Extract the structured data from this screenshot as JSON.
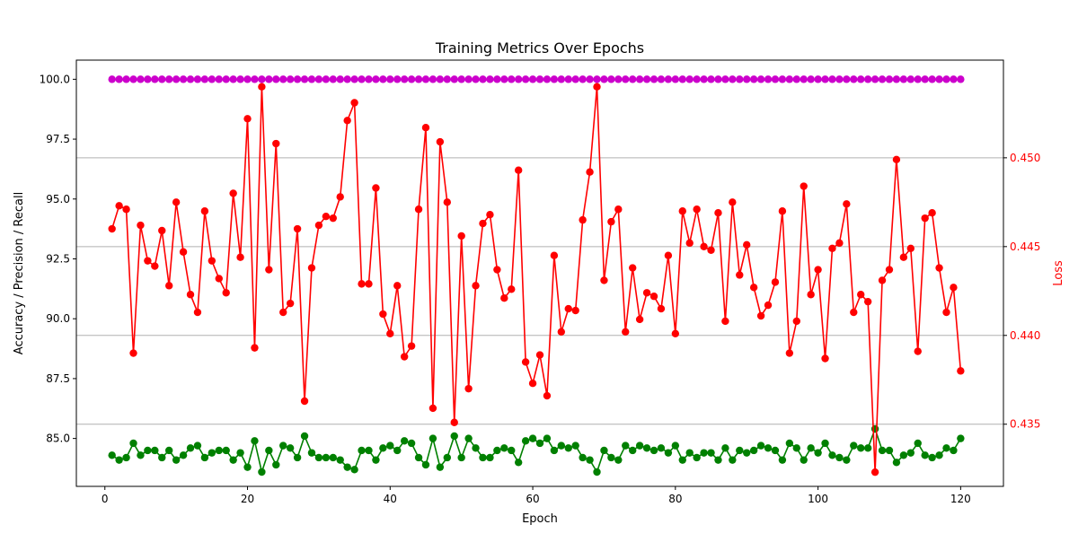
{
  "chart_data": {
    "type": "line",
    "title": "Training Metrics Over Epochs",
    "xlabel": "Epoch",
    "ylabel": "Accuracy / Precision / Recall",
    "y2label": "Loss",
    "xlim": [
      -4,
      126
    ],
    "ylim": [
      83.0,
      100.8
    ],
    "y2lim": [
      0.4315,
      0.4555
    ],
    "xticks": [
      "0",
      "20",
      "40",
      "60",
      "80",
      "100",
      "120"
    ],
    "yticks": [
      "85.0",
      "87.5",
      "90.0",
      "92.5",
      "95.0",
      "97.5",
      "100.0"
    ],
    "y2ticks": [
      "0.435",
      "0.440",
      "0.445",
      "0.450"
    ],
    "grid": "right-axis horizontal",
    "legend": "none",
    "colors": {
      "magenta": "#cc00cc",
      "red": "#ff0000",
      "green": "#008000",
      "loss_axis": "#ff0000"
    },
    "x": [
      1,
      2,
      3,
      4,
      5,
      6,
      7,
      8,
      9,
      10,
      11,
      12,
      13,
      14,
      15,
      16,
      17,
      18,
      19,
      20,
      21,
      22,
      23,
      24,
      25,
      26,
      27,
      28,
      29,
      30,
      31,
      32,
      33,
      34,
      35,
      36,
      37,
      38,
      39,
      40,
      41,
      42,
      43,
      44,
      45,
      46,
      47,
      48,
      49,
      50,
      51,
      52,
      53,
      54,
      55,
      56,
      57,
      58,
      59,
      60,
      61,
      62,
      63,
      64,
      65,
      66,
      67,
      68,
      69,
      70,
      71,
      72,
      73,
      74,
      75,
      76,
      77,
      78,
      79,
      80,
      81,
      82,
      83,
      84,
      85,
      86,
      87,
      88,
      89,
      90,
      91,
      92,
      93,
      94,
      95,
      96,
      97,
      98,
      99,
      100,
      101,
      102,
      103,
      104,
      105,
      106,
      107,
      108,
      109,
      110,
      111,
      112,
      113,
      114,
      115,
      116,
      117,
      118,
      119,
      120
    ],
    "series": [
      {
        "axis": "left",
        "color": "#cc00cc",
        "values": [
          100,
          100,
          100,
          100,
          100,
          100,
          100,
          100,
          100,
          100,
          100,
          100,
          100,
          100,
          100,
          100,
          100,
          100,
          100,
          100,
          100,
          100,
          100,
          100,
          100,
          100,
          100,
          100,
          100,
          100,
          100,
          100,
          100,
          100,
          100,
          100,
          100,
          100,
          100,
          100,
          100,
          100,
          100,
          100,
          100,
          100,
          100,
          100,
          100,
          100,
          100,
          100,
          100,
          100,
          100,
          100,
          100,
          100,
          100,
          100,
          100,
          100,
          100,
          100,
          100,
          100,
          100,
          100,
          100,
          100,
          100,
          100,
          100,
          100,
          100,
          100,
          100,
          100,
          100,
          100,
          100,
          100,
          100,
          100,
          100,
          100,
          100,
          100,
          100,
          100,
          100,
          100,
          100,
          100,
          100,
          100,
          100,
          100,
          100,
          100,
          100,
          100,
          100,
          100,
          100,
          100,
          100,
          100,
          100,
          100,
          100,
          100,
          100,
          100,
          100,
          100,
          100,
          100,
          100,
          100
        ]
      },
      {
        "axis": "left",
        "color": "#008000",
        "values": [
          84.3,
          84.1,
          84.2,
          84.8,
          84.3,
          84.5,
          84.5,
          84.2,
          84.5,
          84.1,
          84.3,
          84.6,
          84.7,
          84.2,
          84.4,
          84.5,
          84.5,
          84.1,
          84.4,
          83.8,
          84.9,
          83.6,
          84.5,
          83.9,
          84.7,
          84.6,
          84.2,
          85.1,
          84.4,
          84.2,
          84.2,
          84.2,
          84.1,
          83.8,
          83.7,
          84.5,
          84.5,
          84.1,
          84.6,
          84.7,
          84.5,
          84.9,
          84.8,
          84.2,
          83.9,
          85.0,
          83.8,
          84.2,
          85.1,
          84.2,
          85.0,
          84.6,
          84.2,
          84.2,
          84.5,
          84.6,
          84.5,
          84.0,
          84.9,
          85.0,
          84.8,
          85.0,
          84.5,
          84.7,
          84.6,
          84.7,
          84.2,
          84.1,
          83.6,
          84.5,
          84.2,
          84.1,
          84.7,
          84.5,
          84.7,
          84.6,
          84.5,
          84.6,
          84.4,
          84.7,
          84.1,
          84.4,
          84.2,
          84.4,
          84.4,
          84.1,
          84.6,
          84.1,
          84.5,
          84.4,
          84.5,
          84.7,
          84.6,
          84.5,
          84.1,
          84.8,
          84.6,
          84.1,
          84.6,
          84.4,
          84.8,
          84.3,
          84.2,
          84.1,
          84.7,
          84.6,
          84.6,
          85.4,
          84.5,
          84.5,
          84.0,
          84.3,
          84.4,
          84.8,
          84.3,
          84.2,
          84.3,
          84.6,
          84.5,
          85.0
        ]
      },
      {
        "axis": "right",
        "color": "#ff0000",
        "values": [
          0.446,
          0.4473,
          0.4471,
          0.439,
          0.4462,
          0.4442,
          0.4439,
          0.4459,
          0.4428,
          0.4475,
          0.4447,
          0.4423,
          0.4413,
          0.447,
          0.4442,
          0.4432,
          0.4424,
          0.448,
          0.4444,
          0.4522,
          0.4393,
          0.454,
          0.4437,
          0.4508,
          0.4413,
          0.4418,
          0.446,
          0.4363,
          0.4438,
          0.4462,
          0.4467,
          0.4466,
          0.4478,
          0.4521,
          0.4531,
          0.4429,
          0.4429,
          0.4483,
          0.4412,
          0.4401,
          0.4428,
          0.4388,
          0.4394,
          0.4471,
          0.4517,
          0.4359,
          0.4509,
          0.4475,
          0.4351,
          0.4456,
          0.437,
          0.4428,
          0.4463,
          0.4468,
          0.4437,
          0.4421,
          0.4426,
          0.4493,
          0.4385,
          0.4373,
          0.4389,
          0.4366,
          0.4445,
          0.4402,
          0.4415,
          0.4414,
          0.4465,
          0.4492,
          0.454,
          0.4431,
          0.4464,
          0.4471,
          0.4402,
          0.4438,
          0.4409,
          0.4424,
          0.4422,
          0.4415,
          0.4445,
          0.4401,
          0.447,
          0.4452,
          0.4471,
          0.445,
          0.4448,
          0.4469,
          0.4408,
          0.4475,
          0.4434,
          0.4451,
          0.4427,
          0.4411,
          0.4417,
          0.443,
          0.447,
          0.439,
          0.4408,
          0.4484,
          0.4423,
          0.4437,
          0.4387,
          0.4449,
          0.4452,
          0.4474,
          0.4413,
          0.4423,
          0.4419,
          0.4323,
          0.4431,
          0.4437,
          0.4499,
          0.4444,
          0.4449,
          0.4391,
          0.4466,
          0.4469,
          0.4438,
          0.4413,
          0.4427,
          0.438
        ]
      }
    ]
  }
}
